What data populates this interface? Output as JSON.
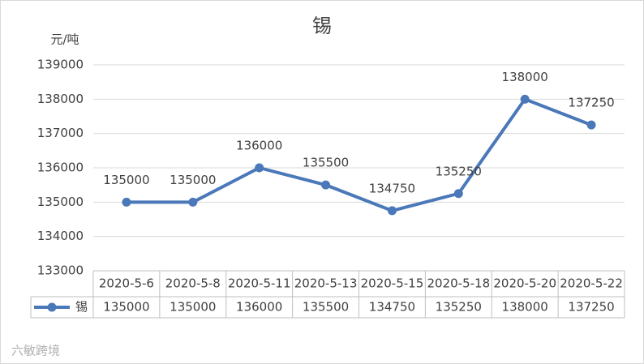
{
  "chart_data": {
    "type": "line",
    "title": "锡",
    "y_label": "元/吨",
    "categories": [
      "2020-5-6",
      "2020-5-8",
      "2020-5-11",
      "2020-5-13",
      "2020-5-15",
      "2020-5-18",
      "2020-5-20",
      "2020-5-22"
    ],
    "series": [
      {
        "name": "锡",
        "color": "#4a78b8",
        "values": [
          135000,
          135000,
          136000,
          135500,
          134750,
          135250,
          138000,
          137250
        ]
      }
    ],
    "ylim": [
      133000,
      139000
    ],
    "yticks": [
      133000,
      134000,
      135000,
      136000,
      137000,
      138000,
      139000
    ],
    "grid": true,
    "data_labels": true,
    "data_table": true
  },
  "watermark": "六敏跨境"
}
